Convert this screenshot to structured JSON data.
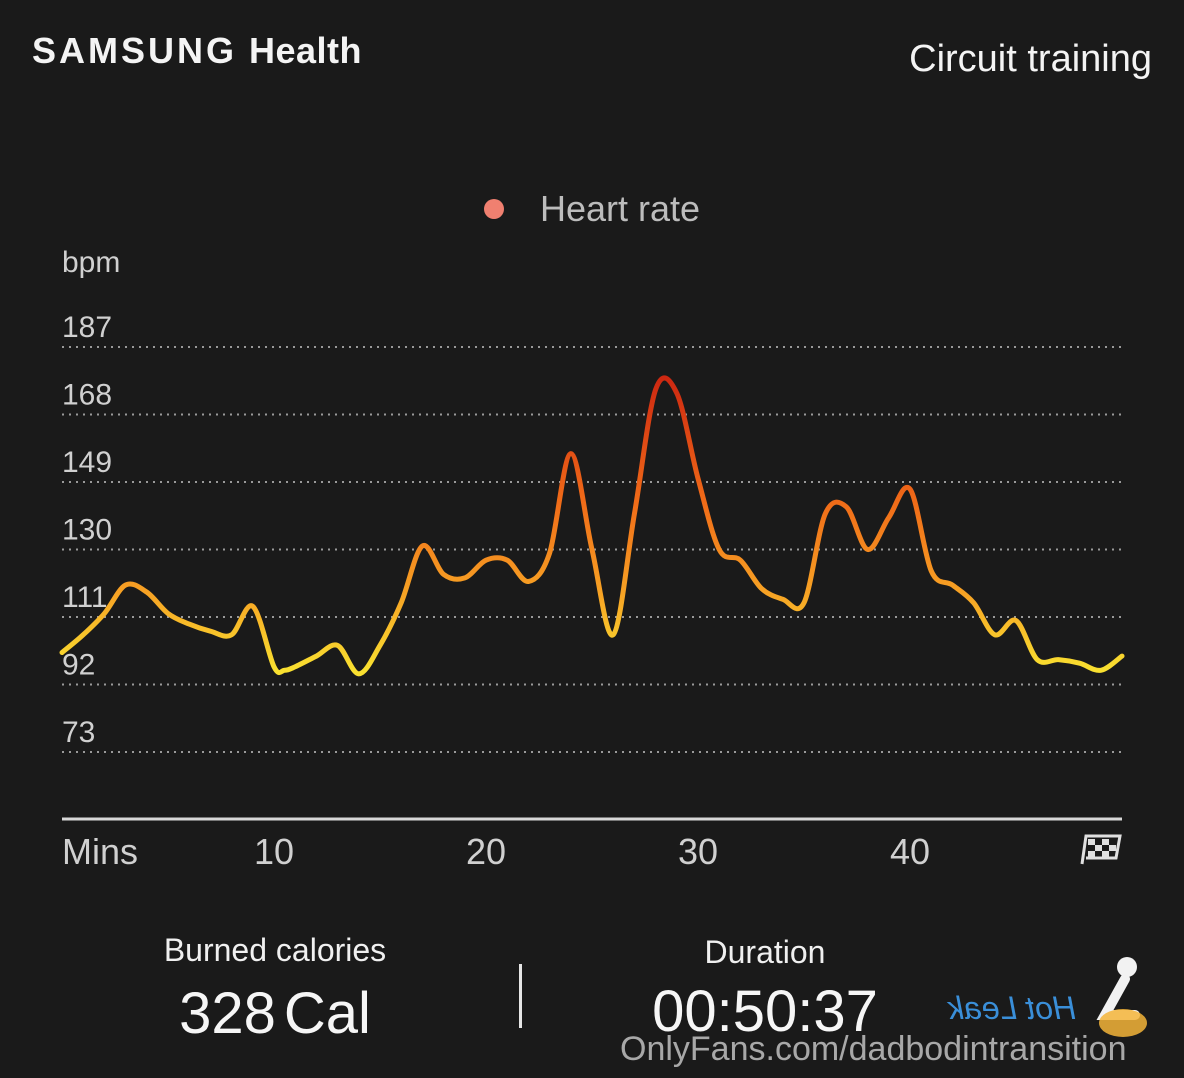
{
  "header": {
    "brand": "SAMSUNG",
    "brand_sub": "Health",
    "activity": "Circuit training"
  },
  "legend": {
    "label": "Heart rate",
    "color": "#f08070"
  },
  "chart_data": {
    "type": "line",
    "ylabel": "bpm",
    "xlabel": "Mins",
    "y_ticks": [
      187,
      168,
      149,
      130,
      111,
      92,
      73
    ],
    "x_ticks": [
      10,
      20,
      30,
      40
    ],
    "xlim": [
      0,
      50
    ],
    "ylim": [
      54,
      187
    ],
    "grid": true,
    "end_marker_icon": "finish-flag-icon",
    "series": [
      {
        "name": "Heart rate",
        "x": [
          0,
          1,
          2,
          3,
          4,
          5,
          6,
          7,
          8,
          9,
          10,
          10.5,
          11,
          12,
          13,
          14,
          15,
          16,
          17,
          18,
          19,
          20,
          21,
          22,
          23,
          24,
          25,
          26,
          27,
          28,
          29,
          30,
          31,
          32,
          33,
          34,
          35,
          36,
          37,
          38,
          39,
          40,
          41,
          42,
          43,
          44,
          45,
          46,
          47,
          48,
          49,
          50
        ],
        "values": [
          101,
          106,
          112,
          120,
          118,
          112,
          109,
          107,
          106,
          114,
          97,
          96,
          97,
          100,
          103,
          95,
          103,
          115,
          131,
          123,
          122,
          127,
          127,
          121,
          129,
          157,
          130,
          106,
          140,
          175,
          174,
          150,
          130,
          127,
          119,
          116,
          115,
          140,
          142,
          130,
          139,
          147,
          124,
          120,
          115,
          106,
          110,
          99,
          99,
          98,
          96,
          100
        ]
      }
    ]
  },
  "stats": {
    "calories_label": "Burned calories",
    "calories_value": "328",
    "calories_unit": "Cal",
    "duration_label": "Duration",
    "duration_value": "00:50:37"
  },
  "watermark": {
    "text": "OnlyFans.com/dadbodintransition",
    "mark": "Hot Leak"
  }
}
